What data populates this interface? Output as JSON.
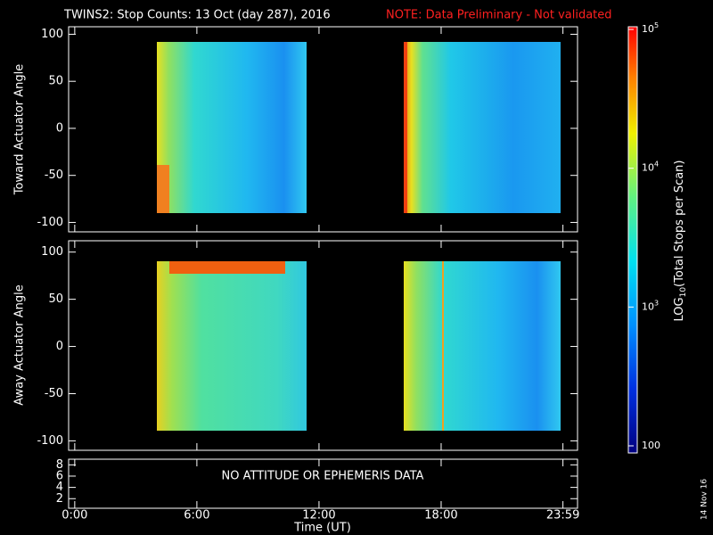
{
  "title": "TWINS2: Stop Counts: 13 Oct (day 287), 2016",
  "note": "NOTE: Data Preliminary - Not validated",
  "date_stamp": "14 Nov 16",
  "chart_data": [
    {
      "type": "heatmap",
      "ylabel": "Toward Actuator Angle",
      "xlim": [
        -0.3,
        24.7
      ],
      "ylim": [
        -110,
        108
      ],
      "yticks": [
        -100,
        -50,
        0,
        50,
        100
      ]
    },
    {
      "type": "heatmap",
      "ylabel": "Away Actuator Angle",
      "xlim": [
        -0.3,
        24.7
      ],
      "ylim": [
        -110,
        112
      ],
      "yticks": [
        -100,
        -50,
        0,
        50,
        100
      ]
    },
    {
      "type": "text-panel",
      "annotation": "NO ATTITUDE OR EPHEMERIS DATA",
      "xlabel": "Time (UT)",
      "xlim": [
        -0.3,
        24.7
      ],
      "ylim": [
        0.3,
        9
      ],
      "yticks": [
        2,
        4,
        6,
        8
      ],
      "xticks": [
        {
          "value": 0,
          "label": "0:00"
        },
        {
          "value": 6,
          "label": "6:00"
        },
        {
          "value": 12,
          "label": "12:00"
        },
        {
          "value": 18,
          "label": "18:00"
        },
        {
          "value": 23.983,
          "label": "23:59"
        }
      ]
    },
    {
      "type": "colorbar",
      "log": true,
      "zlim": [
        100,
        100000
      ],
      "label_base": "LOG",
      "label_sub": "10",
      "label_rest": "(Total Stops per Scan)",
      "zticks": [
        {
          "value": 100000,
          "label": "10",
          "exponent": "5"
        },
        {
          "value": 10000,
          "label": "10",
          "exponent": "4"
        },
        {
          "value": 1000,
          "label": "10",
          "exponent": "3"
        },
        100
      ]
    }
  ]
}
